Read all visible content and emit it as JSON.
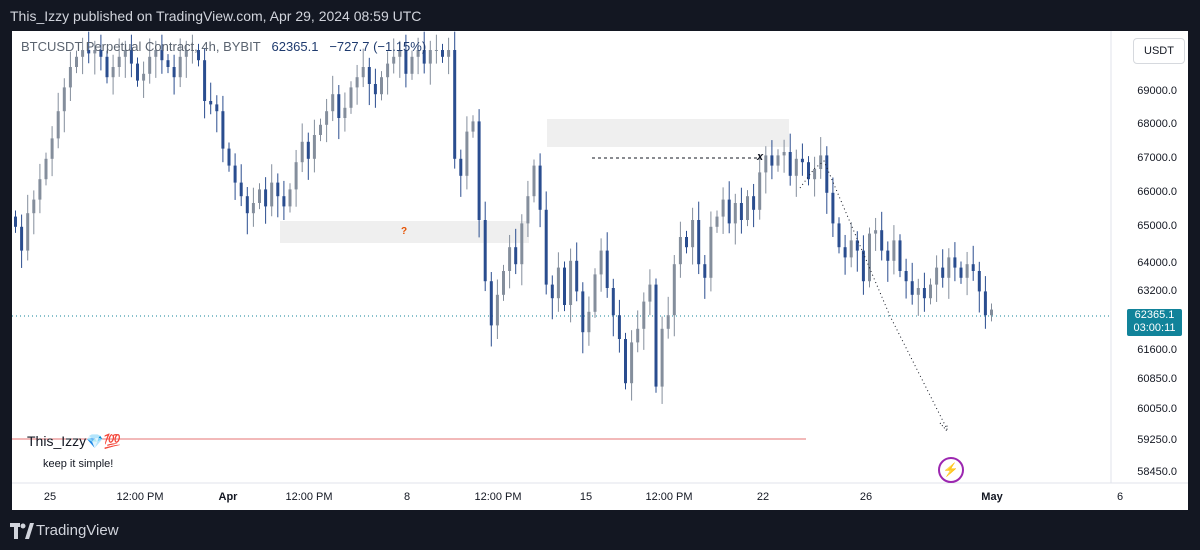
{
  "publish_bar": {
    "text": "This_Izzy published on TradingView.com, Apr 29, 2024 08:59 UTC"
  },
  "legend": {
    "symbol": "BTCUSDT Perpetual Contract, 4h, BYBIT",
    "last": "62365.1",
    "change": "−727.7 (−1.15%)"
  },
  "currency_button": "USDT",
  "price_axis": [
    "69000.0",
    "68000.0",
    "67000.0",
    "66000.0",
    "65000.0",
    "64000.0",
    "63200.0",
    "61600.0",
    "60850.0",
    "60050.0",
    "59250.0",
    "58450.0"
  ],
  "price_tag": {
    "price": "62365.1",
    "countdown": "03:00:11"
  },
  "time_axis": [
    {
      "label": "25",
      "bold": false
    },
    {
      "label": "12:00 PM",
      "bold": false
    },
    {
      "label": "Apr",
      "bold": true
    },
    {
      "label": "12:00 PM",
      "bold": false
    },
    {
      "label": "8",
      "bold": false
    },
    {
      "label": "12:00 PM",
      "bold": false
    },
    {
      "label": "15",
      "bold": false
    },
    {
      "label": "12:00 PM",
      "bold": false
    },
    {
      "label": "22",
      "bold": false
    },
    {
      "label": "26",
      "bold": false
    },
    {
      "label": "May",
      "bold": true
    },
    {
      "label": "6",
      "bold": false
    }
  ],
  "annotations": {
    "author": "This_Izzy💎💯",
    "note": "keep it simple!",
    "question": "?",
    "x_marker": "x"
  },
  "brand": "TradingView",
  "colors": {
    "up": "#848e9c",
    "down": "#2a4d8f",
    "last_line": "#11839a",
    "support": "#e57373",
    "zone": "#e8e8e8"
  },
  "chart_data": {
    "type": "candlestick",
    "symbol": "BTCUSDT",
    "timeframe": "4h",
    "ylim": [
      58000,
      70000
    ],
    "last_price": 62365.1,
    "closes": [
      64800,
      64100,
      65200,
      65600,
      66200,
      66800,
      67400,
      68200,
      68900,
      69500,
      69800,
      70000,
      69900,
      70000,
      69800,
      69200,
      69500,
      69800,
      70000,
      69600,
      69100,
      69300,
      69800,
      70000,
      69700,
      69500,
      69200,
      69800,
      70000,
      70000,
      69700,
      68500,
      68400,
      68200,
      67100,
      66600,
      66100,
      65700,
      65200,
      65500,
      65900,
      65400,
      66100,
      65700,
      65400,
      65900,
      66700,
      67300,
      66800,
      67500,
      67800,
      68200,
      68700,
      68000,
      68300,
      68900,
      69200,
      69500,
      69000,
      68700,
      69200,
      69600,
      69800,
      70000,
      69300,
      69800,
      70000,
      69600,
      70000,
      70000,
      69800,
      70000,
      66800,
      66300,
      67600,
      67900,
      65000,
      63200,
      61900,
      62800,
      63500,
      64200,
      63700,
      64900,
      65700,
      66600,
      65300,
      63100,
      62700,
      63600,
      62500,
      63800,
      62900,
      61700,
      62300,
      63400,
      64100,
      63000,
      62200,
      61500,
      60200,
      61400,
      61800,
      62600,
      63100,
      60100,
      61800,
      62200,
      63700,
      64500,
      64200,
      65000,
      63700,
      63300,
      64800,
      65100,
      65600,
      64900,
      65500,
      65000,
      65700,
      65300,
      66400,
      66900,
      66600,
      66900,
      67000,
      66300,
      66800,
      66700,
      66200,
      66500,
      66900,
      65800,
      64900,
      64200,
      63900,
      64400,
      64100,
      63200,
      64600,
      64700,
      64100,
      63800,
      64400,
      63500,
      63200,
      62800,
      63000,
      62700,
      63100,
      63600,
      63300,
      63900,
      63600,
      63300,
      63700,
      63500,
      62900,
      62200,
      62365.1
    ]
  }
}
